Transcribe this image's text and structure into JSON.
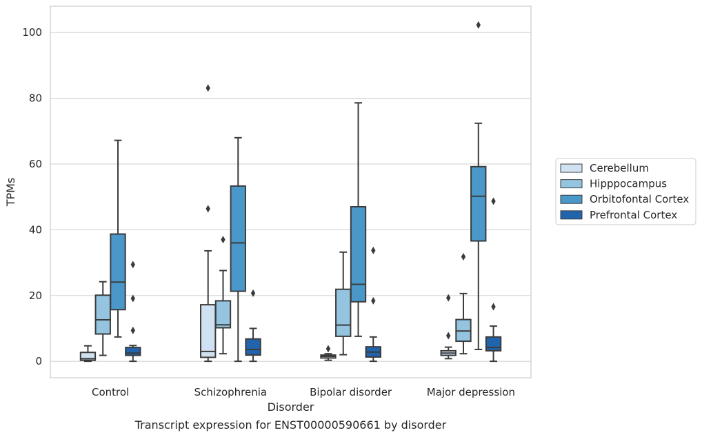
{
  "caption": "Transcript expression for ENST00000590661 by disorder",
  "chart_data": {
    "type": "box",
    "xlabel": "Disorder",
    "ylabel": "TPMs",
    "ylim": [
      -5,
      108
    ],
    "yticks": [
      0,
      20,
      40,
      60,
      80,
      100
    ],
    "grid": "horizontal",
    "legend_position": "right",
    "categories": [
      "Control",
      "Schizophrenia",
      "Bipolar disorder",
      "Major depression"
    ],
    "series": [
      {
        "name": "Cerebellum",
        "color": "#d0e1f2",
        "boxes": [
          {
            "whislo": 0.0,
            "q1": 0.3,
            "med": 0.8,
            "q3": 2.7,
            "whishi": 4.7,
            "fliers": []
          },
          {
            "whislo": 0.0,
            "q1": 1.2,
            "med": 3.0,
            "q3": 17.2,
            "whishi": 33.6,
            "fliers": [
              46.4,
              83.1
            ]
          },
          {
            "whislo": 0.3,
            "q1": 1.0,
            "med": 1.5,
            "q3": 1.9,
            "whishi": 2.3,
            "fliers": [
              3.8
            ]
          },
          {
            "whislo": 0.8,
            "q1": 1.8,
            "med": 2.5,
            "q3": 3.2,
            "whishi": 4.3,
            "fliers": [
              7.8,
              19.3
            ]
          }
        ]
      },
      {
        "name": "Hipppocampus",
        "color": "#94c4df",
        "boxes": [
          {
            "whislo": 1.8,
            "q1": 8.3,
            "med": 12.6,
            "q3": 20.1,
            "whishi": 24.2,
            "fliers": []
          },
          {
            "whislo": 2.3,
            "q1": 10.2,
            "med": 11.1,
            "q3": 18.4,
            "whishi": 27.6,
            "fliers": [
              37.0
            ]
          },
          {
            "whislo": 2.0,
            "q1": 7.6,
            "med": 11.0,
            "q3": 21.9,
            "whishi": 33.2,
            "fliers": []
          },
          {
            "whislo": 2.3,
            "q1": 6.1,
            "med": 9.2,
            "q3": 12.7,
            "whishi": 20.6,
            "fliers": [
              31.8
            ]
          }
        ]
      },
      {
        "name": "Orbitofontal Cortex",
        "color": "#4a98c9",
        "boxes": [
          {
            "whislo": 7.4,
            "q1": 15.7,
            "med": 24.1,
            "q3": 38.7,
            "whishi": 67.2,
            "fliers": []
          },
          {
            "whislo": 0.0,
            "q1": 21.3,
            "med": 36.0,
            "q3": 53.3,
            "whishi": 68.0,
            "fliers": []
          },
          {
            "whislo": 7.6,
            "q1": 18.1,
            "med": 23.4,
            "q3": 47.0,
            "whishi": 78.6,
            "fliers": []
          },
          {
            "whislo": 3.6,
            "q1": 36.6,
            "med": 50.2,
            "q3": 59.2,
            "whishi": 72.4,
            "fliers": [
              102.3
            ]
          }
        ]
      },
      {
        "name": "Prefrontal Cortex",
        "color": "#2164ab",
        "boxes": [
          {
            "whislo": 0.0,
            "q1": 1.8,
            "med": 2.5,
            "q3": 4.2,
            "whishi": 4.8,
            "fliers": [
              9.4,
              19.1,
              29.4
            ]
          },
          {
            "whislo": 0.0,
            "q1": 1.9,
            "med": 3.6,
            "q3": 6.8,
            "whishi": 10.0,
            "fliers": [
              20.7
            ]
          },
          {
            "whislo": 0.0,
            "q1": 1.3,
            "med": 2.8,
            "q3": 4.4,
            "whishi": 7.4,
            "fliers": [
              18.4,
              33.7
            ]
          },
          {
            "whislo": 0.0,
            "q1": 3.2,
            "med": 4.2,
            "q3": 7.4,
            "whishi": 10.7,
            "fliers": [
              16.6,
              48.7
            ]
          }
        ]
      }
    ]
  }
}
